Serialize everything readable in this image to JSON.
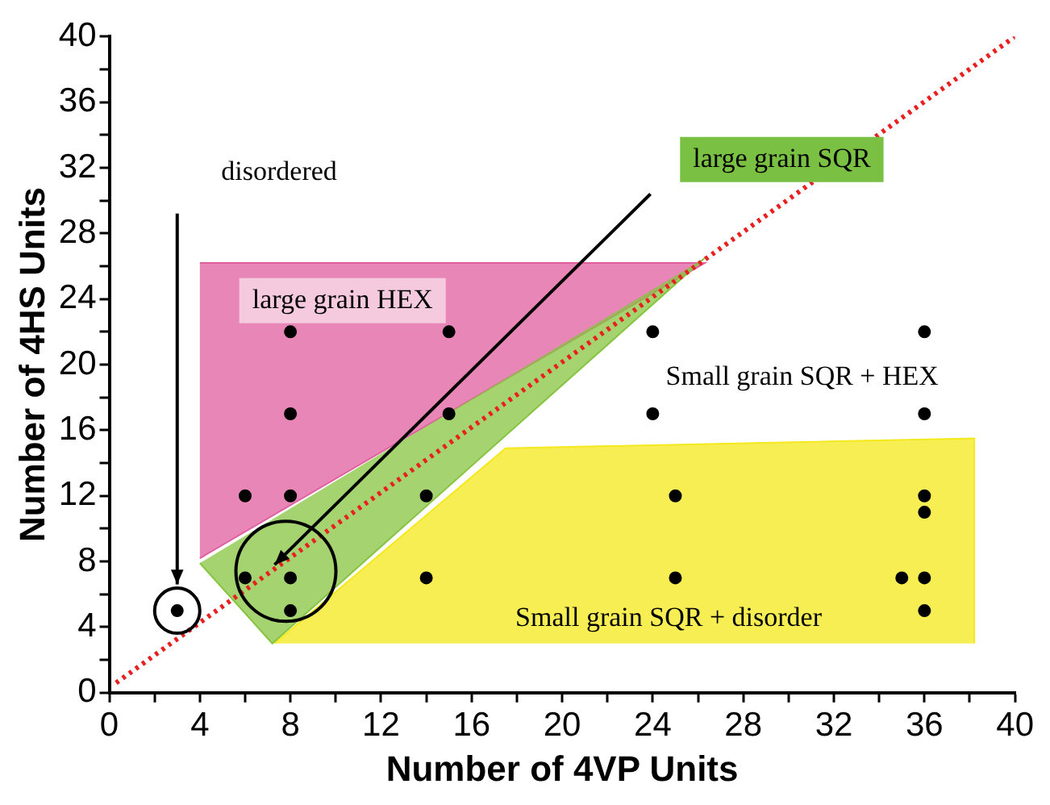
{
  "chart_data": {
    "type": "scatter",
    "xlabel": "Number of 4VP Units",
    "ylabel": "Number of 4HS Units",
    "xlim": [
      0,
      40
    ],
    "ylim": [
      0,
      40
    ],
    "xticks": [
      0,
      {
        "value": 2,
        "label": null
      },
      4,
      {
        "value": 6,
        "label": null
      },
      8,
      {
        "value": 10,
        "label": null
      },
      12,
      {
        "value": 14,
        "label": null
      },
      16,
      {
        "value": 18,
        "label": null
      },
      20,
      {
        "value": 22,
        "label": null
      },
      24,
      {
        "value": 26,
        "label": null
      },
      28,
      {
        "value": 30,
        "label": null
      },
      32,
      {
        "value": 34,
        "label": null
      },
      36,
      {
        "value": 38,
        "label": null
      },
      40
    ],
    "yticks": [
      0,
      {
        "value": 2,
        "label": null
      },
      4,
      {
        "value": 6,
        "label": null
      },
      8,
      {
        "value": 10,
        "label": null
      },
      12,
      {
        "value": 14,
        "label": null
      },
      16,
      {
        "value": 18,
        "label": null
      },
      20,
      {
        "value": 22,
        "label": null
      },
      24,
      {
        "value": 26,
        "label": null
      },
      28,
      {
        "value": 30,
        "label": null
      },
      32,
      {
        "value": 34,
        "label": null
      },
      36,
      {
        "value": 38,
        "label": null
      },
      40
    ],
    "grid": false,
    "legend": false,
    "series": [
      {
        "type": "area",
        "color": "#e0609f",
        "x": [
          4,
          26.3,
          4
        ],
        "values": [
          26.2,
          26.2,
          8.2
        ]
      },
      {
        "type": "area",
        "color": "#f5e81c",
        "x": [
          7.3,
          17.5,
          38.2,
          38.2
        ],
        "values": [
          3,
          14.9,
          15.5,
          3
        ]
      },
      {
        "type": "area",
        "color": "#86c440",
        "x": [
          4,
          7.2,
          26.3
        ],
        "values": [
          7.9,
          3,
          26.5
        ]
      },
      {
        "type": "line",
        "color": "#e82020",
        "line_style": "dotted",
        "x": [
          0.3,
          40
        ],
        "values": [
          0.6,
          40
        ]
      },
      {
        "type": "scatter",
        "color": "#000000",
        "marker": "circle",
        "x": [
          3,
          6,
          6,
          8,
          8,
          8,
          8,
          8,
          14,
          14,
          15,
          15,
          24,
          24,
          25,
          25,
          35,
          36,
          36,
          36,
          36,
          36,
          36
        ],
        "values": [
          5,
          12,
          7,
          22,
          17,
          12,
          7,
          5,
          12,
          7,
          22,
          17,
          22,
          17,
          12,
          7,
          7,
          22,
          17,
          12,
          11,
          7,
          5
        ]
      }
    ],
    "annotations": [
      "disordered",
      "large grain SQR",
      "large grain HEX",
      "Small grain SQR + HEX",
      "Small grain SQR + disorder"
    ]
  }
}
